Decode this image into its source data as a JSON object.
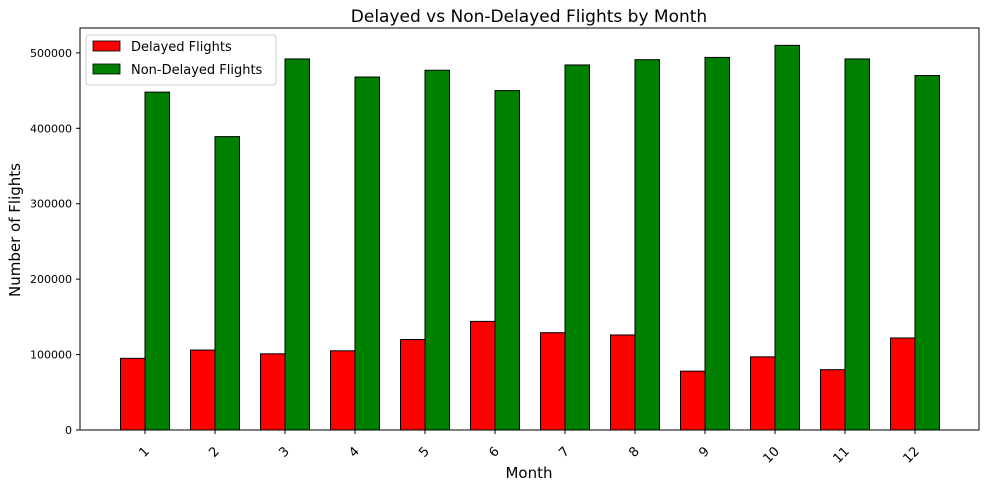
{
  "chart_data": {
    "type": "bar",
    "title": "Delayed vs Non-Delayed Flights by Month",
    "xlabel": "Month",
    "ylabel": "Number of Flights",
    "categories": [
      "1",
      "2",
      "3",
      "4",
      "5",
      "6",
      "7",
      "8",
      "9",
      "10",
      "11",
      "12"
    ],
    "series": [
      {
        "name": "Delayed Flights",
        "color": "#ff0000",
        "values": [
          95000,
          106000,
          101000,
          105000,
          120000,
          144000,
          129000,
          126000,
          78000,
          97000,
          80000,
          122000
        ]
      },
      {
        "name": "Non-Delayed Flights",
        "color": "#008000",
        "values": [
          448000,
          389000,
          492000,
          468000,
          477000,
          450000,
          484000,
          491000,
          494000,
          510000,
          492000,
          470000
        ]
      }
    ],
    "ylim": [
      0,
      533000
    ],
    "yticks": [
      0,
      100000,
      200000,
      300000,
      400000,
      500000
    ],
    "ytick_labels": [
      "0",
      "100000",
      "200000",
      "300000",
      "400000",
      "500000"
    ],
    "legend_position": "upper-left",
    "grid": false,
    "xtick_rotation": -45
  }
}
